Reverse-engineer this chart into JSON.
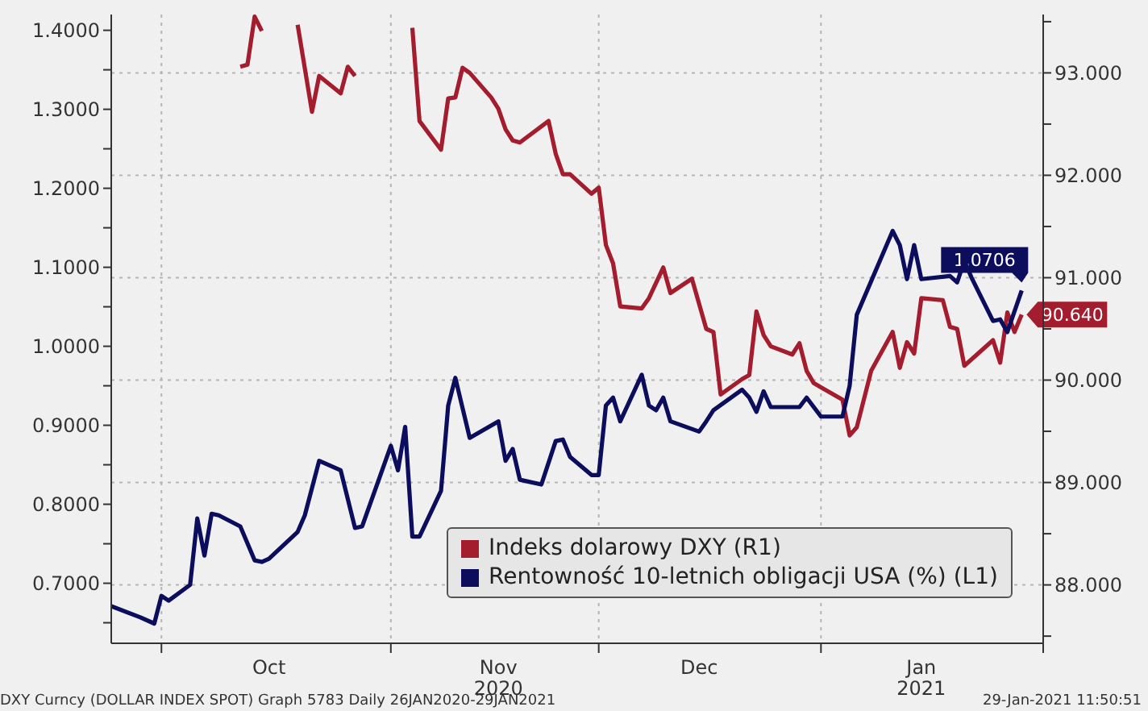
{
  "chart_data": {
    "type": "line",
    "xlim": [
      "2020-09-24",
      "2021-02-01"
    ],
    "xticks": [
      {
        "value": "2020-10-01",
        "label": null
      },
      {
        "value": "2020-11-02",
        "label": null
      },
      {
        "value": "2020-12-01",
        "label": null
      },
      {
        "value": "2021-01-01",
        "label": null
      },
      {
        "value": "2021-02-01",
        "label": null
      },
      {
        "value": "2020-10-16",
        "label": "Oct"
      },
      {
        "value": "2020-11-17",
        "label": "Nov\n2020"
      },
      {
        "value": "2020-12-15",
        "label": "Dec"
      },
      {
        "value": "2021-01-15",
        "label": "Jan\n2021"
      }
    ],
    "ylim": [
      0.624,
      1.42
    ],
    "yticks": [
      {
        "value": 0.65,
        "label": null
      },
      {
        "value": 0.7,
        "label": "0.7000"
      },
      {
        "value": 0.75,
        "label": null
      },
      {
        "value": 0.8,
        "label": "0.8000"
      },
      {
        "value": 0.85,
        "label": null
      },
      {
        "value": 0.9,
        "label": "0.9000"
      },
      {
        "value": 0.95,
        "label": null
      },
      {
        "value": 1.0,
        "label": "1.0000"
      },
      {
        "value": 1.05,
        "label": null
      },
      {
        "value": 1.1,
        "label": "1.1000"
      },
      {
        "value": 1.15,
        "label": null
      },
      {
        "value": 1.2,
        "label": "1.2000"
      },
      {
        "value": 1.25,
        "label": null
      },
      {
        "value": 1.3,
        "label": "1.3000"
      },
      {
        "value": 1.35,
        "label": null
      },
      {
        "value": 1.4,
        "label": "1.4000"
      }
    ],
    "y2lim": [
      87.43,
      93.57
    ],
    "y2ticks": [
      {
        "value": 87.5,
        "label": null
      },
      {
        "value": 88,
        "label": "88.000"
      },
      {
        "value": 88.5,
        "label": null
      },
      {
        "value": 89,
        "label": "89.000"
      },
      {
        "value": 89.5,
        "label": null
      },
      {
        "value": 90,
        "label": "90.000"
      },
      {
        "value": 90.5,
        "label": null
      },
      {
        "value": 91,
        "label": "91.000"
      },
      {
        "value": 91.5,
        "label": null
      },
      {
        "value": 92,
        "label": "92.000"
      },
      {
        "value": 92.5,
        "label": null
      },
      {
        "value": 93,
        "label": "93.000"
      },
      {
        "value": 93.5,
        "label": null
      }
    ],
    "grid": true,
    "legend": "bottom right",
    "marker": "none",
    "line_style": "solid",
    "series": [
      {
        "name": "Indeks dolarowy DXY (R1)",
        "color": "#a31d2e",
        "axis": "y2",
        "x": [
          "2020-10-12",
          "2020-10-13",
          "2020-10-14",
          "2020-10-15",
          "2020-10-16",
          "2020-10-20",
          "2020-10-22",
          "2020-10-23",
          "2020-10-26",
          "2020-10-27",
          "2020-10-28",
          "2020-10-29",
          "2020-11-05",
          "2020-11-06",
          "2020-11-09",
          "2020-11-10",
          "2020-11-11",
          "2020-11-12",
          "2020-11-13",
          "2020-11-16",
          "2020-11-17",
          "2020-11-18",
          "2020-11-19",
          "2020-11-20",
          "2020-11-24",
          "2020-11-25",
          "2020-11-26",
          "2020-11-27",
          "2020-11-30",
          "2020-12-01",
          "2020-12-02",
          "2020-12-03",
          "2020-12-04",
          "2020-12-07",
          "2020-12-08",
          "2020-12-10",
          "2020-12-11",
          "2020-12-14",
          "2020-12-16",
          "2020-12-17",
          "2020-12-18",
          "2020-12-21",
          "2020-12-22",
          "2020-12-23",
          "2020-12-24",
          "2020-12-25",
          "2020-12-28",
          "2020-12-29",
          "2020-12-30",
          "2020-12-31",
          "2021-01-01",
          "2021-01-04",
          "2021-01-05",
          "2021-01-06",
          "2021-01-08",
          "2021-01-11",
          "2021-01-12",
          "2021-01-13",
          "2021-01-14",
          "2021-01-15",
          "2021-01-18",
          "2021-01-19",
          "2021-01-20",
          "2021-01-21",
          "2021-01-25",
          "2021-01-26",
          "2021-01-27",
          "2021-01-28",
          "2021-01-29"
        ],
        "values": [
          93.06,
          93.08,
          93.55,
          93.41,
          null,
          93.47,
          92.62,
          92.97,
          92.8,
          93.06,
          92.97,
          null,
          93.44,
          92.53,
          92.25,
          92.75,
          92.76,
          93.05,
          93.0,
          92.76,
          92.65,
          92.45,
          92.34,
          92.32,
          92.53,
          92.21,
          92.01,
          92.01,
          91.82,
          91.88,
          91.32,
          91.14,
          90.72,
          90.7,
          90.8,
          91.1,
          90.85,
          90.99,
          90.5,
          90.47,
          89.86,
          90.01,
          90.05,
          90.67,
          90.44,
          90.33,
          90.25,
          90.36,
          90.09,
          89.97,
          89.93,
          89.81,
          89.46,
          89.54,
          90.09,
          90.47,
          90.12,
          90.37,
          90.26,
          90.8,
          90.78,
          90.52,
          90.5,
          90.14,
          90.39,
          90.17,
          90.66,
          90.47,
          90.64
        ],
        "value_labels": [
          null,
          null,
          null,
          null,
          null,
          null,
          null,
          null,
          null,
          null,
          null,
          null,
          null,
          null,
          null,
          null,
          null,
          null,
          null,
          null,
          null,
          null,
          null,
          null,
          null,
          null,
          null,
          null,
          null,
          null,
          null,
          null,
          null,
          null,
          null,
          null,
          null,
          null,
          null,
          null,
          null,
          null,
          null,
          null,
          null,
          null,
          null,
          null,
          null,
          null,
          null,
          null,
          null,
          null,
          null,
          null,
          null,
          null,
          null,
          null,
          null,
          null,
          null,
          null,
          null,
          null,
          null,
          null,
          "90.640"
        ]
      },
      {
        "name": "Rentowność 10-letnich obligacji USA (%) (L1)",
        "color": "#0c0d5c",
        "x": [
          "2020-09-24",
          "2020-09-28",
          "2020-09-30",
          "2020-10-01",
          "2020-10-02",
          "2020-10-05",
          "2020-10-06",
          "2020-10-07",
          "2020-10-08",
          "2020-10-09",
          "2020-10-12",
          "2020-10-14",
          "2020-10-15",
          "2020-10-16",
          "2020-10-20",
          "2020-10-21",
          "2020-10-23",
          "2020-10-26",
          "2020-10-28",
          "2020-10-29",
          "2020-11-02",
          "2020-11-03",
          "2020-11-04",
          "2020-11-05",
          "2020-11-06",
          "2020-11-09",
          "2020-11-10",
          "2020-11-11",
          "2020-11-13",
          "2020-11-17",
          "2020-11-18",
          "2020-11-19",
          "2020-11-20",
          "2020-11-23",
          "2020-11-25",
          "2020-11-26",
          "2020-11-27",
          "2020-11-30",
          "2020-12-01",
          "2020-12-02",
          "2020-12-03",
          "2020-12-04",
          "2020-12-07",
          "2020-12-08",
          "2020-12-09",
          "2020-12-10",
          "2020-12-11",
          "2020-12-15",
          "2020-12-16",
          "2020-12-17",
          "2020-12-21",
          "2020-12-22",
          "2020-12-23",
          "2020-12-24",
          "2020-12-25",
          "2020-12-29",
          "2020-12-30",
          "2021-01-01",
          "2021-01-04",
          "2021-01-05",
          "2021-01-06",
          "2021-01-11",
          "2021-01-12",
          "2021-01-13",
          "2021-01-14",
          "2021-01-15",
          "2021-01-19",
          "2021-01-20",
          "2021-01-21",
          "2021-01-22",
          "2021-01-25",
          "2021-01-26",
          "2021-01-27",
          "2021-01-29"
        ],
        "values": [
          0.671,
          0.657,
          0.649,
          0.684,
          0.678,
          0.698,
          0.782,
          0.735,
          0.788,
          0.786,
          0.772,
          0.729,
          0.727,
          0.731,
          0.765,
          0.786,
          0.855,
          0.843,
          0.77,
          0.772,
          0.874,
          0.843,
          0.898,
          0.759,
          0.759,
          0.817,
          0.925,
          0.96,
          0.884,
          0.905,
          0.855,
          0.87,
          0.831,
          0.825,
          0.88,
          0.882,
          0.86,
          0.837,
          0.837,
          0.925,
          0.935,
          0.905,
          0.964,
          0.925,
          0.919,
          0.935,
          0.905,
          0.892,
          0.905,
          0.919,
          0.945,
          0.935,
          0.917,
          0.943,
          0.923,
          0.923,
          0.935,
          0.911,
          0.911,
          0.95,
          1.04,
          1.146,
          1.128,
          1.085,
          1.128,
          1.085,
          1.089,
          1.081,
          1.108,
          1.087,
          1.032,
          1.034,
          1.018,
          1.0706
        ],
        "value_labels": [
          null,
          null,
          null,
          null,
          null,
          null,
          null,
          null,
          null,
          null,
          null,
          null,
          null,
          null,
          null,
          null,
          null,
          null,
          null,
          null,
          null,
          null,
          null,
          null,
          null,
          null,
          null,
          null,
          null,
          null,
          null,
          null,
          null,
          null,
          null,
          null,
          null,
          null,
          null,
          null,
          null,
          null,
          null,
          null,
          null,
          null,
          null,
          null,
          null,
          null,
          null,
          null,
          null,
          null,
          null,
          null,
          null,
          null,
          null,
          null,
          null,
          null,
          null,
          null,
          null,
          null,
          null,
          null,
          null,
          null,
          null,
          null,
          null,
          "1.0706"
        ]
      }
    ],
    "annotations": [
      "DXY Curncy (DOLLAR INDEX SPOT) Graph 5783  Daily 26JAN2020-29JAN2021",
      "29-Jan-2021 11:50:51"
    ]
  }
}
